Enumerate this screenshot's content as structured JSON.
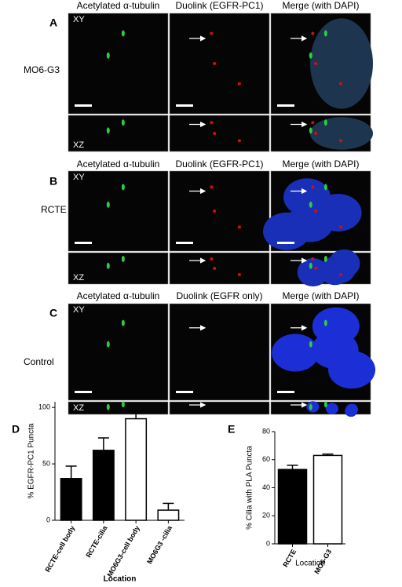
{
  "panels": [
    {
      "label": "A",
      "row_label": "MO6-G3",
      "columns": [
        "Acetylated α-tubulin",
        "Duolink (EGFR-PC1)",
        "Merge (with DAPI)"
      ],
      "views": [
        "XY",
        "XZ"
      ]
    },
    {
      "label": "B",
      "row_label": "RCTE",
      "columns": [
        "Acetylated α-tubulin",
        "Duolink (EGFR-PC1)",
        "Merge (with DAPI)"
      ],
      "views": [
        "XY",
        "XZ"
      ]
    },
    {
      "label": "C",
      "row_label": "Control",
      "columns": [
        "Acetylated α-tubulin",
        "Duolink (EGFR only)",
        "Merge (with DAPI)"
      ],
      "views": [
        "XY",
        "XZ"
      ]
    }
  ],
  "chart_data": [
    {
      "type": "bar",
      "panel_label": "D",
      "y_label": "% EGFR-PC1 Puncta",
      "x_label": "Location",
      "categories": [
        "RCTE-cell body",
        "RCTE-cilia",
        "MO6G3-cell body",
        "MO6G3 -cilia"
      ],
      "values": [
        37,
        62,
        90,
        9
      ],
      "errors": [
        11,
        11,
        5,
        6
      ],
      "colors": [
        "#000000",
        "#000000",
        "#ffffff",
        "#ffffff"
      ],
      "ylim": [
        0,
        105
      ],
      "yticks": [
        0,
        50,
        100
      ]
    },
    {
      "type": "bar",
      "panel_label": "E",
      "y_label": "% Cilia with PLA Puncta",
      "x_label": "Location",
      "categories": [
        "RCTE",
        "MO6-G3"
      ],
      "values": [
        53,
        63
      ],
      "errors": [
        3,
        1
      ],
      "colors": [
        "#000000",
        "#ffffff"
      ],
      "ylim": [
        0,
        80
      ],
      "yticks": [
        0,
        20,
        40,
        60,
        80
      ]
    }
  ]
}
